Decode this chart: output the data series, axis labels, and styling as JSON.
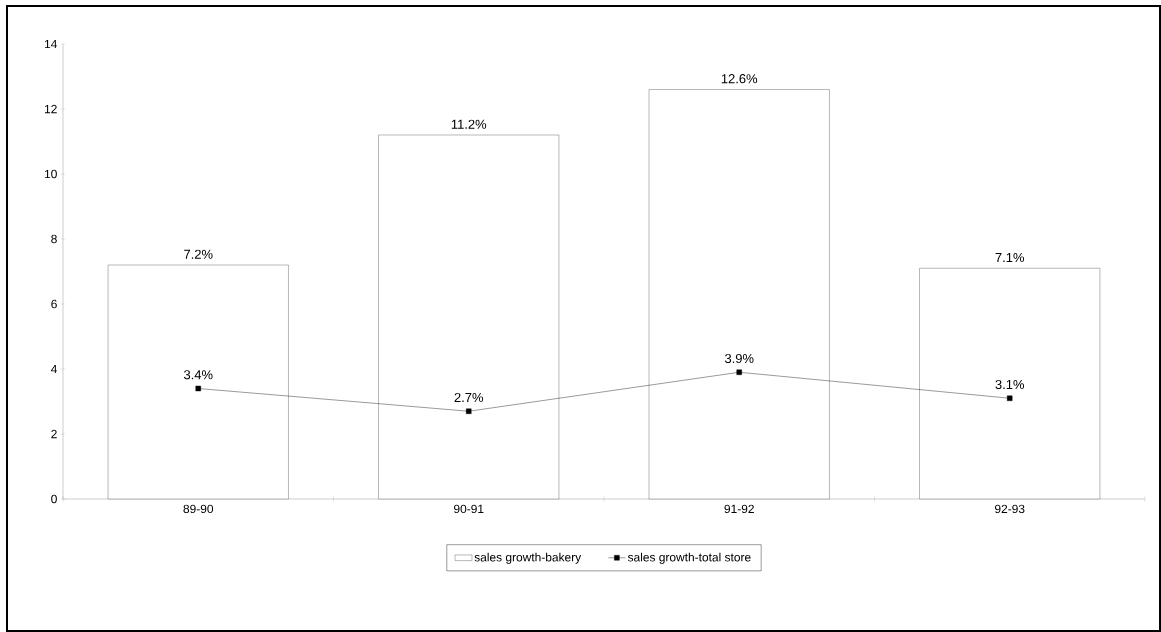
{
  "chart_data": {
    "type": "bar",
    "categories": [
      "89-90",
      "90-91",
      "91-92",
      "92-93"
    ],
    "series": [
      {
        "name": "sales growth-bakery",
        "color": "#ffffff",
        "values": [
          7.2,
          11.2,
          12.6,
          7.1
        ],
        "value_labels": [
          "7.2%",
          "11.2%",
          "12.6%",
          "7.1%"
        ]
      },
      {
        "name": "sales growth-total store",
        "type": "line",
        "color": "#000000",
        "marker": "square",
        "line_style": "solid",
        "values": [
          3.4,
          2.7,
          3.9,
          3.1
        ],
        "value_labels": [
          "3.4%",
          "2.7%",
          "3.9%",
          "3.1%"
        ]
      }
    ],
    "ylim": [
      0,
      14
    ],
    "yticks": [
      0,
      2,
      4,
      6,
      8,
      10,
      12,
      14
    ],
    "grid": false,
    "legend": "bottom"
  }
}
